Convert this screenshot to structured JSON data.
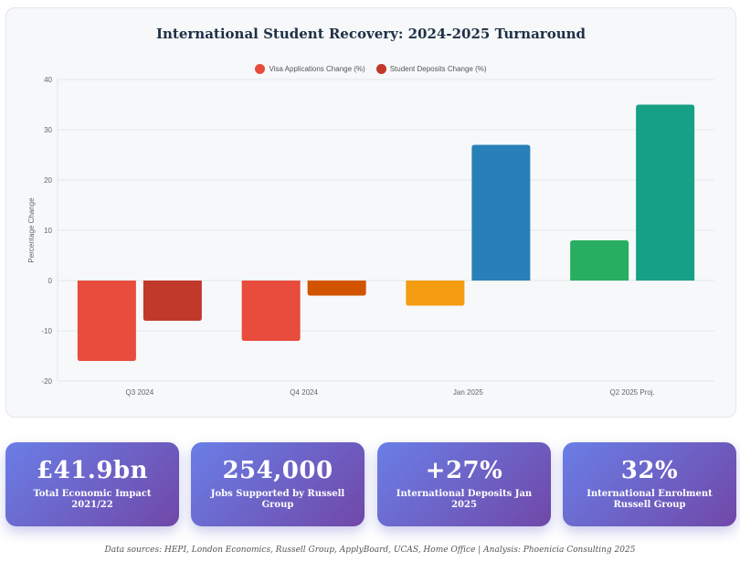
{
  "chart_data": {
    "type": "bar",
    "title": "International Student Recovery: 2024-2025 Turnaround",
    "ylabel": "Percentage Change",
    "xlabel": "",
    "ylim": [
      -20,
      40
    ],
    "yticks": [
      -20,
      -10,
      0,
      10,
      20,
      30,
      40
    ],
    "grid": true,
    "legend_position": "top-center",
    "categories": [
      "Q3 2024",
      "Q4 2024",
      "Jan 2025",
      "Q2 2025 Proj."
    ],
    "series": [
      {
        "name": "Visa Applications Change (%)",
        "legend_color": "#e74c3c",
        "values": [
          -16,
          -12,
          -5,
          8
        ],
        "colors": [
          "#e74c3c",
          "#e74c3c",
          "#f39c12",
          "#27ae60"
        ]
      },
      {
        "name": "Student Deposits Change (%)",
        "legend_color": "#c0392b",
        "values": [
          -8,
          -3,
          27,
          35
        ],
        "colors": [
          "#c0392b",
          "#d35400",
          "#2980b9",
          "#16a085"
        ]
      }
    ]
  },
  "stats": [
    {
      "value": "£41.9bn",
      "label": "Total Economic Impact 2021/22"
    },
    {
      "value": "254,000",
      "label": "Jobs Supported by Russell Group"
    },
    {
      "value": "+27%",
      "label": "International Deposits Jan 2025"
    },
    {
      "value": "32%",
      "label": "International Enrolment Russell Group"
    }
  ],
  "footer": "Data sources: HEPI, London Economics, Russell Group, ApplyBoard, UCAS, Home Office | Analysis: Phoenicia Consulting 2025"
}
